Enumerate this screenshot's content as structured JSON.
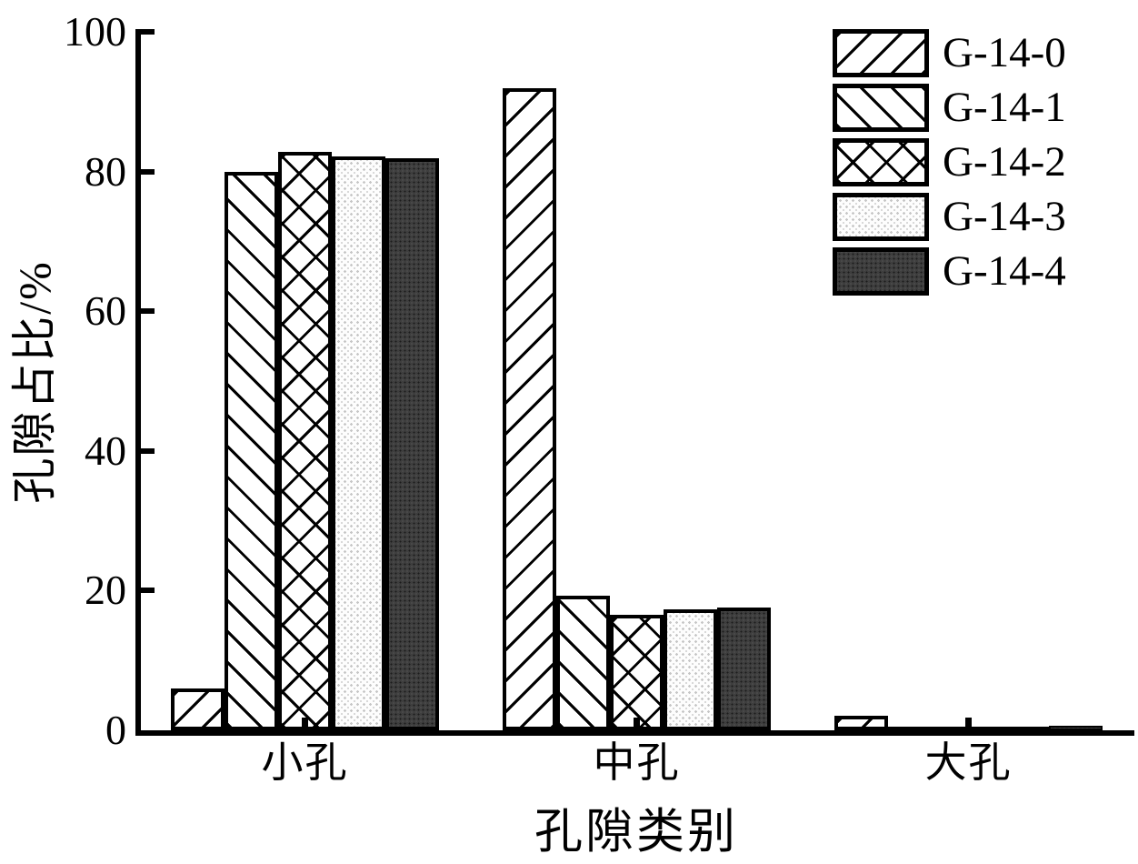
{
  "figure": {
    "background": "#ffffff",
    "ink_color": "#000000"
  },
  "chart_data": {
    "type": "bar",
    "title": "",
    "categories": [
      "小孔",
      "中孔",
      "大孔"
    ],
    "series": [
      {
        "name": "G-14-0",
        "pattern": "diagonal-forward",
        "values": [
          6.0,
          91.9,
          2.1
        ]
      },
      {
        "name": "G-14-1",
        "pattern": "diagonal-backward",
        "values": [
          80.0,
          19.3,
          0.3
        ]
      },
      {
        "name": "G-14-2",
        "pattern": "crosshatch",
        "values": [
          82.8,
          16.5,
          0.3
        ]
      },
      {
        "name": "G-14-3",
        "pattern": "dots-light",
        "values": [
          82.2,
          17.3,
          0.4
        ]
      },
      {
        "name": "G-14-4",
        "pattern": "dense-dark",
        "values": [
          81.9,
          17.6,
          0.6
        ]
      }
    ],
    "xlabel": "孔隙类别",
    "ylabel": "孔隙占比/%",
    "ylim": [
      0,
      100
    ],
    "yticks": [
      0,
      20,
      40,
      60,
      80,
      100
    ],
    "grid": false,
    "legend_position": "top-right",
    "tick_direction": "in",
    "bar_fill_colors": {
      "hatch_ink": "#000000",
      "white_fill": "#ffffff",
      "light_dotted_fill": "#ebebeb",
      "dark_fill": "#3e3e3e"
    }
  }
}
